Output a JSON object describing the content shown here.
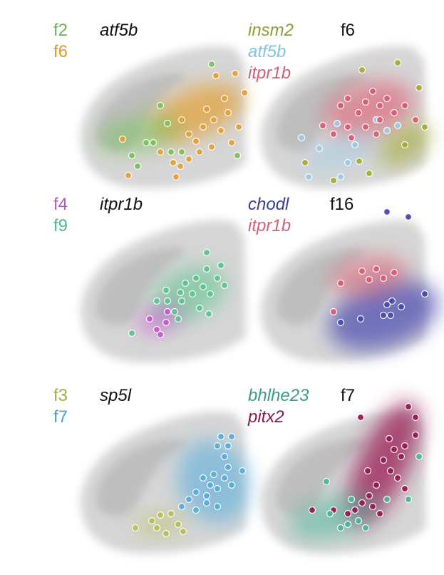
{
  "panels": [
    {
      "legend": [
        {
          "text": "f2",
          "color": "#6ab64a"
        },
        {
          "text": "f6",
          "color": "#dc9a2e"
        }
      ],
      "title": "atf5b",
      "title_italic": true,
      "blobs": [
        {
          "cx": 200,
          "cy": 130,
          "rx": 70,
          "ry": 34,
          "rot": -22,
          "color": "#e3a23a",
          "op": 0.75
        },
        {
          "cx": 120,
          "cy": 160,
          "rx": 60,
          "ry": 26,
          "rot": -10,
          "color": "#7cc25e",
          "op": 0.55
        }
      ],
      "points": [
        {
          "x": 150,
          "y": 120,
          "c": "#7cc25e"
        },
        {
          "x": 160,
          "y": 145,
          "c": "#7cc25e"
        },
        {
          "x": 130,
          "y": 172,
          "c": "#7cc25e"
        },
        {
          "x": 110,
          "y": 190,
          "c": "#7cc25e"
        },
        {
          "x": 118,
          "y": 205,
          "c": "#7cc25e"
        },
        {
          "x": 140,
          "y": 172,
          "c": "#7cc25e"
        },
        {
          "x": 222,
          "y": 62,
          "c": "#7cc25e"
        },
        {
          "x": 258,
          "y": 190,
          "c": "#7cc25e"
        },
        {
          "x": 180,
          "y": 185,
          "c": "#7cc25e"
        },
        {
          "x": 165,
          "y": 185,
          "c": "#7cc25e"
        },
        {
          "x": 97,
          "y": 167,
          "c": "#e3a23a"
        },
        {
          "x": 105,
          "y": 218,
          "c": "#e3a23a"
        },
        {
          "x": 168,
          "y": 200,
          "c": "#e3a23a"
        },
        {
          "x": 178,
          "y": 205,
          "c": "#e3a23a"
        },
        {
          "x": 190,
          "y": 195,
          "c": "#e3a23a"
        },
        {
          "x": 200,
          "y": 170,
          "c": "#e3a23a"
        },
        {
          "x": 210,
          "y": 150,
          "c": "#e3a23a"
        },
        {
          "x": 215,
          "y": 125,
          "c": "#e3a23a"
        },
        {
          "x": 225,
          "y": 140,
          "c": "#e3a23a"
        },
        {
          "x": 235,
          "y": 155,
          "c": "#e3a23a"
        },
        {
          "x": 245,
          "y": 130,
          "c": "#e3a23a"
        },
        {
          "x": 240,
          "y": 110,
          "c": "#e3a23a"
        },
        {
          "x": 255,
          "y": 75,
          "c": "#e3a23a"
        },
        {
          "x": 268,
          "y": 102,
          "c": "#e3a23a"
        },
        {
          "x": 228,
          "y": 78,
          "c": "#e3a23a"
        },
        {
          "x": 190,
          "y": 160,
          "c": "#e3a23a"
        },
        {
          "x": 180,
          "y": 140,
          "c": "#e3a23a"
        },
        {
          "x": 172,
          "y": 220,
          "c": "#e3a23a"
        },
        {
          "x": 150,
          "y": 185,
          "c": "#e3a23a"
        },
        {
          "x": 205,
          "y": 185,
          "c": "#e3a23a"
        },
        {
          "x": 222,
          "y": 178,
          "c": "#e3a23a"
        },
        {
          "x": 260,
          "y": 150,
          "c": "#e3a23a"
        },
        {
          "x": 250,
          "y": 172,
          "c": "#e3a23a"
        }
      ]
    },
    {
      "legend": [
        {
          "text": "insm2",
          "color": "#8f9d37",
          "italic": true
        },
        {
          "text": "atf5b",
          "color": "#82c3e1",
          "italic": true
        },
        {
          "text": "itpr1b",
          "color": "#cd6378",
          "italic": true
        }
      ],
      "title": "f6",
      "title_italic": false,
      "blobs": [
        {
          "cx": 190,
          "cy": 125,
          "rx": 65,
          "ry": 38,
          "rot": -15,
          "color": "#dc5c70",
          "op": 0.6
        },
        {
          "cx": 150,
          "cy": 185,
          "rx": 55,
          "ry": 22,
          "rot": -20,
          "color": "#9ccbe6",
          "op": 0.45
        },
        {
          "cx": 240,
          "cy": 175,
          "rx": 40,
          "ry": 22,
          "rot": -35,
          "color": "#a5ad3c",
          "op": 0.7
        }
      ],
      "points": [
        {
          "x": 180,
          "y": 70,
          "c": "#a5ad3c"
        },
        {
          "x": 230,
          "y": 60,
          "c": "#a5ad3c"
        },
        {
          "x": 260,
          "y": 95,
          "c": "#a5ad3c"
        },
        {
          "x": 240,
          "y": 175,
          "c": "#a5ad3c"
        },
        {
          "x": 176,
          "y": 198,
          "c": "#a5ad3c"
        },
        {
          "x": 190,
          "y": 215,
          "c": "#a5ad3c"
        },
        {
          "x": 140,
          "y": 225,
          "c": "#a5ad3c"
        },
        {
          "x": 100,
          "y": 200,
          "c": "#a5ad3c"
        },
        {
          "x": 268,
          "y": 150,
          "c": "#a5ad3c"
        },
        {
          "x": 95,
          "y": 165,
          "c": "#9ccbe6"
        },
        {
          "x": 120,
          "y": 180,
          "c": "#9ccbe6"
        },
        {
          "x": 105,
          "y": 220,
          "c": "#9ccbe6"
        },
        {
          "x": 160,
          "y": 200,
          "c": "#9ccbe6"
        },
        {
          "x": 170,
          "y": 175,
          "c": "#9ccbe6"
        },
        {
          "x": 200,
          "y": 140,
          "c": "#9ccbe6"
        },
        {
          "x": 215,
          "y": 155,
          "c": "#9ccbe6"
        },
        {
          "x": 230,
          "y": 148,
          "c": "#9ccbe6"
        },
        {
          "x": 150,
          "y": 220,
          "c": "#9ccbe6"
        },
        {
          "x": 145,
          "y": 145,
          "c": "#9ccbe6"
        },
        {
          "x": 150,
          "y": 120,
          "c": "#dc5c70"
        },
        {
          "x": 160,
          "y": 110,
          "c": "#dc5c70"
        },
        {
          "x": 175,
          "y": 130,
          "c": "#dc5c70"
        },
        {
          "x": 185,
          "y": 115,
          "c": "#dc5c70"
        },
        {
          "x": 195,
          "y": 100,
          "c": "#dc5c70"
        },
        {
          "x": 205,
          "y": 120,
          "c": "#dc5c70"
        },
        {
          "x": 215,
          "y": 110,
          "c": "#dc5c70"
        },
        {
          "x": 225,
          "y": 130,
          "c": "#dc5c70"
        },
        {
          "x": 240,
          "y": 120,
          "c": "#dc5c70"
        },
        {
          "x": 205,
          "y": 140,
          "c": "#dc5c70"
        },
        {
          "x": 185,
          "y": 150,
          "c": "#dc5c70"
        },
        {
          "x": 165,
          "y": 165,
          "c": "#dc5c70"
        },
        {
          "x": 140,
          "y": 160,
          "c": "#dc5c70"
        },
        {
          "x": 125,
          "y": 148,
          "c": "#dc5c70"
        },
        {
          "x": 200,
          "y": 160,
          "c": "#dc5c70"
        },
        {
          "x": 255,
          "y": 140,
          "c": "#dc5c70"
        },
        {
          "x": 160,
          "y": 150,
          "c": "#dc5c70"
        }
      ]
    },
    {
      "legend": [
        {
          "text": "f4",
          "color": "#b25bb7"
        },
        {
          "text": "f9",
          "color": "#4fb98a"
        }
      ],
      "title": "itpr1b",
      "title_italic": true,
      "blobs": [
        {
          "cx": 190,
          "cy": 140,
          "rx": 55,
          "ry": 34,
          "rot": -25,
          "color": "#5fc590",
          "op": 0.6
        },
        {
          "cx": 150,
          "cy": 175,
          "rx": 32,
          "ry": 18,
          "rot": -20,
          "color": "#c75ad0",
          "op": 0.6
        }
      ],
      "points": [
        {
          "x": 135,
          "y": 175,
          "c": "#c75ad0"
        },
        {
          "x": 145,
          "y": 190,
          "c": "#c75ad0"
        },
        {
          "x": 158,
          "y": 180,
          "c": "#c75ad0"
        },
        {
          "x": 150,
          "y": 197,
          "c": "#c75ad0"
        },
        {
          "x": 160,
          "y": 165,
          "c": "#c75ad0"
        },
        {
          "x": 110,
          "y": 195,
          "c": "#5fc590"
        },
        {
          "x": 145,
          "y": 150,
          "c": "#5fc590"
        },
        {
          "x": 160,
          "y": 150,
          "c": "#5fc590"
        },
        {
          "x": 170,
          "y": 165,
          "c": "#5fc590"
        },
        {
          "x": 180,
          "y": 150,
          "c": "#5fc590"
        },
        {
          "x": 185,
          "y": 125,
          "c": "#5fc590"
        },
        {
          "x": 195,
          "y": 140,
          "c": "#5fc590"
        },
        {
          "x": 200,
          "y": 118,
          "c": "#5fc590"
        },
        {
          "x": 210,
          "y": 130,
          "c": "#5fc590"
        },
        {
          "x": 215,
          "y": 105,
          "c": "#5fc590"
        },
        {
          "x": 220,
          "y": 140,
          "c": "#5fc590"
        },
        {
          "x": 230,
          "y": 118,
          "c": "#5fc590"
        },
        {
          "x": 240,
          "y": 128,
          "c": "#5fc590"
        },
        {
          "x": 235,
          "y": 100,
          "c": "#5fc590"
        },
        {
          "x": 205,
          "y": 160,
          "c": "#5fc590"
        },
        {
          "x": 218,
          "y": 168,
          "c": "#5fc590"
        },
        {
          "x": 175,
          "y": 175,
          "c": "#5fc590"
        },
        {
          "x": 215,
          "y": 82,
          "c": "#5fc590"
        },
        {
          "x": 178,
          "y": 138,
          "c": "#5fc590"
        },
        {
          "x": 158,
          "y": 135,
          "c": "#5fc590"
        }
      ]
    },
    {
      "legend": [
        {
          "text": "chodl",
          "color": "#3b3d8e",
          "italic": true
        },
        {
          "text": "itpr1b",
          "color": "#cd6378",
          "italic": true
        }
      ],
      "title": "f16",
      "title_italic": false,
      "blobs": [
        {
          "cx": 210,
          "cy": 170,
          "rx": 80,
          "ry": 45,
          "rot": -18,
          "color": "#4a4ab0",
          "op": 0.7
        },
        {
          "cx": 190,
          "cy": 115,
          "rx": 55,
          "ry": 28,
          "rot": -10,
          "color": "#dc5c70",
          "op": 0.55
        }
      ],
      "points": [
        {
          "x": 180,
          "y": 108,
          "c": "#dc5c70"
        },
        {
          "x": 190,
          "y": 120,
          "c": "#dc5c70"
        },
        {
          "x": 200,
          "y": 105,
          "c": "#dc5c70"
        },
        {
          "x": 210,
          "y": 118,
          "c": "#dc5c70"
        },
        {
          "x": 225,
          "y": 110,
          "c": "#dc5c70"
        },
        {
          "x": 150,
          "y": 125,
          "c": "#dc5c70"
        },
        {
          "x": 140,
          "y": 165,
          "c": "#dc5c70"
        },
        {
          "x": 215,
          "y": 155,
          "c": "#4a4ab0"
        },
        {
          "x": 222,
          "y": 150,
          "c": "#4a4ab0"
        },
        {
          "x": 235,
          "y": 158,
          "c": "#4a4ab0"
        },
        {
          "x": 210,
          "y": 170,
          "c": "#4a4ab0"
        },
        {
          "x": 220,
          "y": 170,
          "c": "#4a4ab0"
        },
        {
          "x": 178,
          "y": 175,
          "c": "#4a4ab0"
        },
        {
          "x": 150,
          "y": 180,
          "c": "#4a4ab0"
        },
        {
          "x": 215,
          "y": 25,
          "c": "#4a4ab0"
        },
        {
          "x": 245,
          "y": 32,
          "c": "#4a4ab0"
        },
        {
          "x": 268,
          "y": 140,
          "c": "#4a4ab0"
        }
      ]
    },
    {
      "legend": [
        {
          "text": "f3",
          "color": "#a3ad43"
        },
        {
          "text": "f7",
          "color": "#4f9fcb"
        }
      ],
      "title": "sp5l",
      "title_italic": true,
      "blobs": [
        {
          "cx": 225,
          "cy": 135,
          "rx": 50,
          "ry": 60,
          "rot": -20,
          "color": "#5aaedb",
          "op": 0.6
        },
        {
          "cx": 150,
          "cy": 195,
          "rx": 35,
          "ry": 15,
          "rot": -5,
          "color": "#b8bf5a",
          "op": 0.55
        }
      ],
      "points": [
        {
          "x": 115,
          "y": 200,
          "c": "#b8bf5a"
        },
        {
          "x": 138,
          "y": 190,
          "c": "#b8bf5a"
        },
        {
          "x": 150,
          "y": 182,
          "c": "#b8bf5a"
        },
        {
          "x": 165,
          "y": 180,
          "c": "#b8bf5a"
        },
        {
          "x": 175,
          "y": 195,
          "c": "#b8bf5a"
        },
        {
          "x": 182,
          "y": 205,
          "c": "#b8bf5a"
        },
        {
          "x": 158,
          "y": 208,
          "c": "#b8bf5a"
        },
        {
          "x": 145,
          "y": 200,
          "c": "#b8bf5a"
        },
        {
          "x": 180,
          "y": 170,
          "c": "#5aaedb"
        },
        {
          "x": 200,
          "y": 150,
          "c": "#5aaedb"
        },
        {
          "x": 210,
          "y": 130,
          "c": "#5aaedb"
        },
        {
          "x": 215,
          "y": 155,
          "c": "#5aaedb"
        },
        {
          "x": 220,
          "y": 140,
          "c": "#5aaedb"
        },
        {
          "x": 225,
          "y": 125,
          "c": "#5aaedb"
        },
        {
          "x": 230,
          "y": 145,
          "c": "#5aaedb"
        },
        {
          "x": 240,
          "y": 130,
          "c": "#5aaedb"
        },
        {
          "x": 245,
          "y": 115,
          "c": "#5aaedb"
        },
        {
          "x": 250,
          "y": 140,
          "c": "#5aaedb"
        },
        {
          "x": 240,
          "y": 100,
          "c": "#5aaedb"
        },
        {
          "x": 230,
          "y": 85,
          "c": "#5aaedb"
        },
        {
          "x": 245,
          "y": 85,
          "c": "#5aaedb"
        },
        {
          "x": 250,
          "y": 72,
          "c": "#5aaedb"
        },
        {
          "x": 235,
          "y": 72,
          "c": "#5aaedb"
        },
        {
          "x": 215,
          "y": 165,
          "c": "#5aaedb"
        },
        {
          "x": 230,
          "y": 170,
          "c": "#5aaedb"
        },
        {
          "x": 200,
          "y": 175,
          "c": "#5aaedb"
        },
        {
          "x": 265,
          "y": 120,
          "c": "#5aaedb"
        },
        {
          "x": 190,
          "y": 160,
          "c": "#5aaedb"
        }
      ]
    },
    {
      "legend": [
        {
          "text": "bhlhe23",
          "color": "#3a9d8a",
          "italic": true
        },
        {
          "text": "pitx2",
          "color": "#891a4c",
          "italic": true
        }
      ],
      "title": "f7",
      "title_italic": false,
      "blobs": [
        {
          "cx": 210,
          "cy": 110,
          "rx": 35,
          "ry": 95,
          "rot": 25,
          "color": "#9a1a55",
          "op": 0.75
        },
        {
          "cx": 140,
          "cy": 185,
          "rx": 65,
          "ry": 28,
          "rot": -15,
          "color": "#4db59a",
          "op": 0.55
        }
      ],
      "points": [
        {
          "x": 178,
          "y": 45,
          "c": "#9a1a55"
        },
        {
          "x": 218,
          "y": 75,
          "c": "#9a1a55"
        },
        {
          "x": 225,
          "y": 90,
          "c": "#9a1a55"
        },
        {
          "x": 235,
          "y": 100,
          "c": "#9a1a55"
        },
        {
          "x": 240,
          "y": 85,
          "c": "#9a1a55"
        },
        {
          "x": 210,
          "y": 105,
          "c": "#9a1a55"
        },
        {
          "x": 220,
          "y": 120,
          "c": "#9a1a55"
        },
        {
          "x": 230,
          "y": 130,
          "c": "#9a1a55"
        },
        {
          "x": 200,
          "y": 140,
          "c": "#9a1a55"
        },
        {
          "x": 190,
          "y": 155,
          "c": "#9a1a55"
        },
        {
          "x": 180,
          "y": 165,
          "c": "#9a1a55"
        },
        {
          "x": 170,
          "y": 175,
          "c": "#9a1a55"
        },
        {
          "x": 160,
          "y": 180,
          "c": "#9a1a55"
        },
        {
          "x": 140,
          "y": 175,
          "c": "#9a1a55"
        },
        {
          "x": 110,
          "y": 175,
          "c": "#9a1a55"
        },
        {
          "x": 255,
          "y": 70,
          "c": "#9a1a55"
        },
        {
          "x": 245,
          "y": 30,
          "c": "#9a1a55"
        },
        {
          "x": 255,
          "y": 45,
          "c": "#9a1a55"
        },
        {
          "x": 188,
          "y": 120,
          "c": "#9a1a55"
        },
        {
          "x": 240,
          "y": 145,
          "c": "#9a1a55"
        },
        {
          "x": 205,
          "y": 180,
          "c": "#9a1a55"
        },
        {
          "x": 195,
          "y": 170,
          "c": "#9a1a55"
        },
        {
          "x": 130,
          "y": 135,
          "c": "#4db59a"
        },
        {
          "x": 135,
          "y": 180,
          "c": "#4db59a"
        },
        {
          "x": 160,
          "y": 195,
          "c": "#4db59a"
        },
        {
          "x": 175,
          "y": 190,
          "c": "#4db59a"
        },
        {
          "x": 185,
          "y": 200,
          "c": "#4db59a"
        },
        {
          "x": 150,
          "y": 200,
          "c": "#4db59a"
        },
        {
          "x": 215,
          "y": 160,
          "c": "#4db59a"
        },
        {
          "x": 245,
          "y": 160,
          "c": "#4db59a"
        },
        {
          "x": 260,
          "y": 100,
          "c": "#4db59a"
        },
        {
          "x": 165,
          "y": 160,
          "c": "#4db59a"
        }
      ]
    }
  ]
}
